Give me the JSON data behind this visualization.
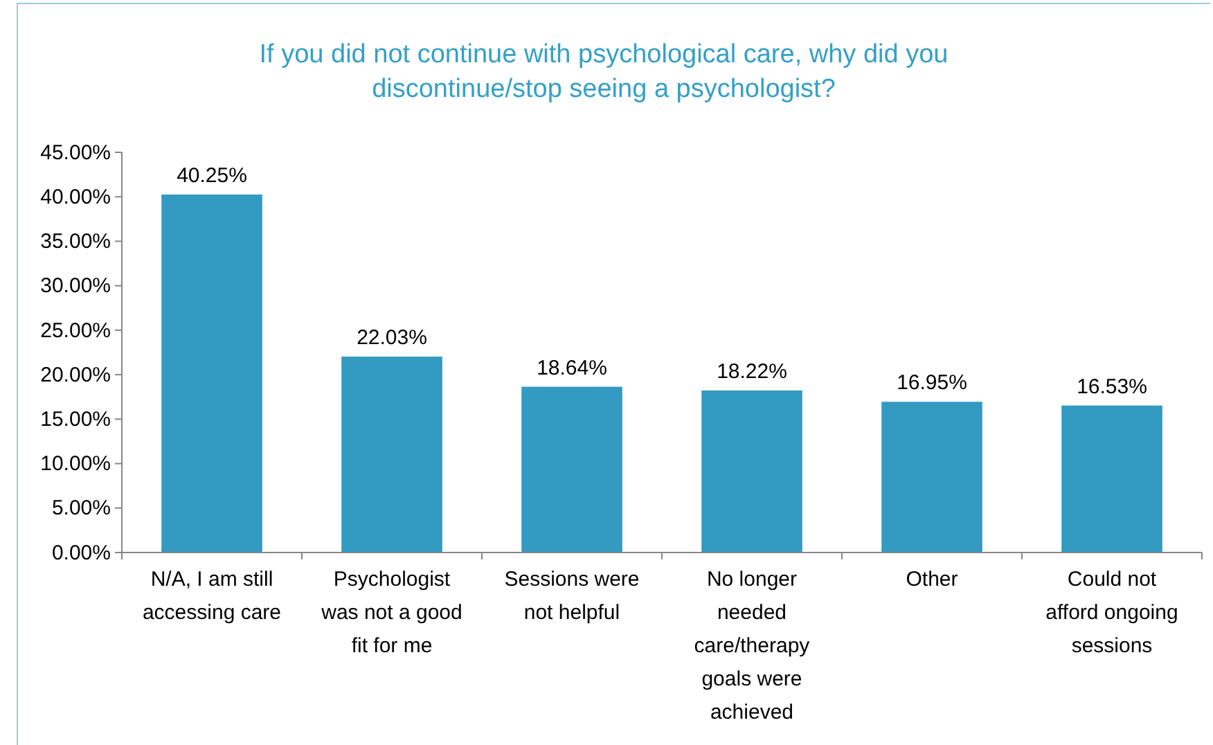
{
  "chart_data": {
    "type": "bar",
    "title": "If you did not continue with psychological care, why did you discontinue/stop seeing a psychologist?",
    "categories": [
      "N/A, I am still accessing care",
      "Psychologist was not a good fit for me",
      "Sessions were not helpful",
      "No longer needed care/therapy goals were achieved",
      "Other",
      "Could not afford ongoing sessions"
    ],
    "values": [
      40.25,
      22.03,
      18.64,
      18.22,
      16.95,
      16.53
    ],
    "value_labels": [
      "40.25%",
      "22.03%",
      "18.64%",
      "18.22%",
      "16.95%",
      "16.53%"
    ],
    "color": "#339ac1",
    "ylim": [
      0,
      45
    ],
    "yticks": [
      {
        "value": 0,
        "label": "0.00%"
      },
      {
        "value": 5,
        "label": "5.00%"
      },
      {
        "value": 10,
        "label": "10.00%"
      },
      {
        "value": 15,
        "label": "15.00%"
      },
      {
        "value": 20,
        "label": "20.00%"
      },
      {
        "value": 25,
        "label": "25.00%"
      },
      {
        "value": 30,
        "label": "30.00%"
      },
      {
        "value": 35,
        "label": "35.00%"
      },
      {
        "value": 40,
        "label": "40.00%"
      },
      {
        "value": 45,
        "label": "45.00%"
      }
    ],
    "grid": false
  }
}
